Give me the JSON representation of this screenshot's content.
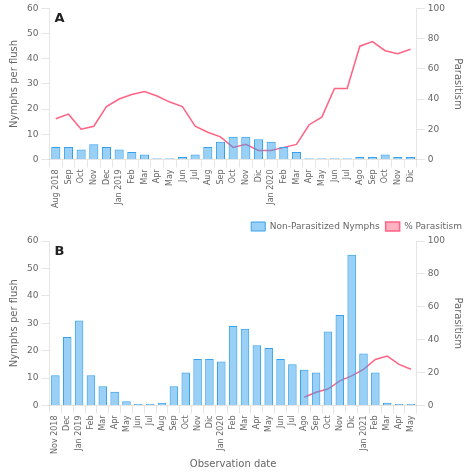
{
  "chart_data": [
    {
      "type": "bar",
      "categories": [
        "Aug 2018",
        "Sep",
        "Oct",
        "Nov",
        "Dec",
        "Jan 2019",
        "Feb",
        "Mar",
        "Apr",
        "May",
        "Jun",
        "Jul",
        "Aug",
        "Sep",
        "Oct",
        "Nov",
        "Dic",
        "Jan 2020",
        "Feb",
        "Mar",
        "Apr",
        "May",
        "Jun",
        "Jul",
        "Ago",
        "Sep",
        "Oct",
        "Nov",
        "Dic"
      ],
      "series": [
        {
          "type": "bar",
          "values": [
            5,
            5,
            4,
            6,
            5,
            4,
            3,
            2,
            0.5,
            0.5,
            1,
            2,
            5,
            7,
            9,
            9,
            8,
            7,
            5,
            3,
            0.5,
            0.5,
            0.5,
            0.5,
            1,
            1,
            2,
            1,
            1
          ]
        },
        {
          "type": "line",
          "axis": "y2",
          "values": [
            27,
            30,
            20,
            22,
            35,
            40,
            43,
            45,
            42,
            38,
            35,
            22,
            18,
            15,
            8,
            10,
            6,
            6,
            8,
            10,
            23,
            28,
            47,
            47,
            75,
            78,
            72,
            70,
            73
          ]
        }
      ],
      "ylabel": "Nymphs per flush",
      "y2label": "Parasitism",
      "ylim": [
        0,
        60
      ],
      "yticks": [
        0,
        10,
        20,
        30,
        40,
        50,
        60
      ],
      "y2lim": [
        0,
        100
      ],
      "y2ticks": [
        0,
        20,
        40,
        60,
        80,
        100
      ],
      "grid": false,
      "annotations": [
        "A"
      ]
    },
    {
      "type": "bar",
      "categories": [
        "Nov 2018",
        "Dec",
        "Jan 2019",
        "Feb",
        "Mar",
        "Apr",
        "May",
        "Jun",
        "Jul",
        "Aug",
        "Sep",
        "Oct",
        "Nov",
        "Dic",
        "Jan 2020",
        "Feb",
        "Mar",
        "Apr",
        "May",
        "Jun",
        "Jul",
        "Ago",
        "Sep",
        "Oct",
        "Nov",
        "Dic",
        "Jan 2021",
        "Feb",
        "Mar",
        "Apr",
        "May"
      ],
      "series": [
        {
          "name": "Non-Parasitized Nymphs",
          "type": "bar",
          "values": [
            11,
            25,
            31,
            11,
            7,
            5,
            1.5,
            0.5,
            0.5,
            1,
            7,
            12,
            17,
            17,
            16,
            29,
            28,
            22,
            21,
            17,
            15,
            13,
            12,
            27,
            33,
            55,
            19,
            12,
            1,
            0.5,
            0.5
          ]
        },
        {
          "name": "% Parasitism",
          "type": "line",
          "axis": "y2",
          "values": [
            null,
            null,
            null,
            null,
            null,
            null,
            null,
            null,
            null,
            null,
            null,
            null,
            null,
            null,
            null,
            null,
            null,
            null,
            null,
            null,
            null,
            5,
            8,
            10,
            15,
            18,
            22,
            28,
            30,
            25,
            22
          ]
        }
      ],
      "xlabel": "Observation date",
      "ylabel": "Nymphs per flush",
      "y2label": "Parasitism",
      "ylim": [
        0,
        60
      ],
      "yticks": [
        0,
        10,
        20,
        30,
        40,
        50,
        60
      ],
      "y2lim": [
        0,
        100
      ],
      "y2ticks": [
        0,
        20,
        40,
        60,
        80,
        100
      ],
      "grid": false,
      "legend": "upper right",
      "annotations": [
        "B"
      ]
    }
  ]
}
